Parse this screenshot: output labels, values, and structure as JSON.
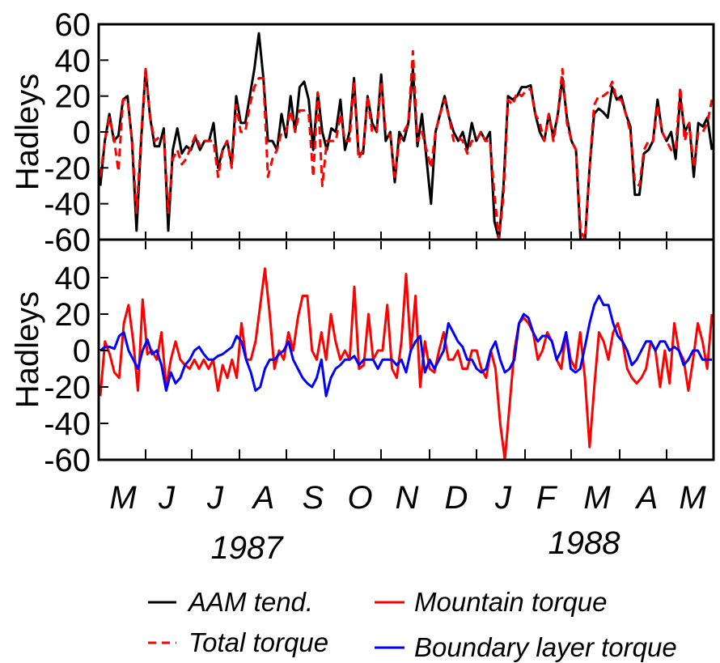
{
  "chart_data": [
    {
      "type": "line",
      "ylabel": "Hadleys",
      "ylim": [
        -60,
        60
      ],
      "yticks": [
        "60",
        "40",
        "20",
        "0",
        "-20",
        "-40",
        "-60"
      ],
      "x_step_days": 2,
      "series": [
        {
          "name": "AAM tend.",
          "color": "#000000",
          "dash": "solid",
          "values": [
            -30,
            -5,
            10,
            -5,
            -2,
            18,
            20,
            -5,
            -55,
            -5,
            35,
            8,
            -8,
            -8,
            2,
            -55,
            -10,
            2,
            -12,
            -8,
            -10,
            -3,
            -10,
            -5,
            -5,
            5,
            -20,
            -10,
            -5,
            -18,
            20,
            5,
            5,
            20,
            35,
            55,
            30,
            -5,
            -5,
            -10,
            10,
            -3,
            20,
            0,
            25,
            28,
            18,
            -10,
            22,
            0,
            -10,
            2,
            0,
            18,
            -10,
            0,
            30,
            -12,
            -12,
            20,
            5,
            0,
            32,
            -5,
            0,
            -28,
            0,
            -5,
            5,
            35,
            -8,
            10,
            -15,
            -40,
            0,
            10,
            20,
            8,
            0,
            -5,
            0,
            -10,
            5,
            -5,
            0,
            -5,
            0,
            -50,
            -70,
            -30,
            20,
            18,
            20,
            25,
            25,
            26,
            10,
            0,
            -5,
            10,
            -3,
            10,
            30,
            8,
            -5,
            -10,
            -70,
            -70,
            -20,
            10,
            13,
            11,
            8,
            25,
            18,
            20,
            10,
            3,
            -35,
            -35,
            -12,
            -10,
            -5,
            18,
            0,
            -5,
            0,
            -15,
            20,
            0,
            5,
            -25,
            5,
            3,
            8,
            -10
          ],
          "label_values": []
        },
        {
          "name": "Total torque",
          "color": "#ff0000",
          "dash": "dashed",
          "values": [
            -25,
            -5,
            8,
            -3,
            -22,
            18,
            18,
            -5,
            -45,
            -3,
            35,
            8,
            -5,
            -3,
            -2,
            -45,
            -15,
            -10,
            -18,
            -15,
            -8,
            -2,
            -8,
            -5,
            -5,
            -5,
            -25,
            -10,
            -5,
            -20,
            15,
            0,
            0,
            15,
            25,
            30,
            30,
            -25,
            -15,
            -10,
            0,
            0,
            12,
            0,
            12,
            12,
            10,
            -25,
            22,
            -30,
            -5,
            -5,
            -5,
            10,
            -5,
            -5,
            28,
            -15,
            -10,
            20,
            0,
            0,
            28,
            0,
            -2,
            -25,
            -5,
            0,
            5,
            45,
            -5,
            0,
            -10,
            -20,
            0,
            10,
            18,
            8,
            -5,
            -3,
            -5,
            -12,
            -5,
            -5,
            0,
            -5,
            -5,
            -35,
            -65,
            -35,
            18,
            15,
            22,
            20,
            23,
            24,
            10,
            5,
            -5,
            10,
            -5,
            10,
            35,
            5,
            -5,
            -10,
            -55,
            -60,
            -20,
            15,
            20,
            20,
            22,
            28,
            18,
            18,
            10,
            0,
            -28,
            -30,
            -10,
            -5,
            -5,
            15,
            0,
            -5,
            -10,
            -10,
            25,
            -5,
            5,
            -20,
            0,
            0,
            5,
            18
          ],
          "label_values": []
        }
      ]
    },
    {
      "type": "line",
      "ylabel": "Hadleys",
      "ylim": [
        -60,
        60
      ],
      "yticks": [
        "40",
        "20",
        "0",
        "-20",
        "-40",
        "-60"
      ],
      "x_step_days": 2,
      "series": [
        {
          "name": "Mountain torque",
          "color": "#ff0000",
          "dash": "solid",
          "values": [
            -25,
            5,
            -2,
            -12,
            -15,
            15,
            25,
            5,
            -22,
            28,
            -2,
            0,
            -5,
            10,
            -20,
            -5,
            5,
            -5,
            -8,
            -10,
            -5,
            -10,
            -5,
            -10,
            -5,
            -22,
            -8,
            -15,
            -5,
            -15,
            15,
            -5,
            -5,
            5,
            25,
            45,
            20,
            -10,
            0,
            -5,
            10,
            0,
            18,
            30,
            30,
            0,
            -5,
            10,
            -5,
            20,
            5,
            -5,
            0,
            -5,
            35,
            -10,
            -8,
            20,
            -5,
            0,
            0,
            25,
            -10,
            -15,
            5,
            42,
            0,
            30,
            -20,
            5,
            -10,
            -12,
            0,
            10,
            -5,
            -5,
            0,
            -10,
            -10,
            0,
            0,
            -10,
            -15,
            0,
            -10,
            -40,
            -60,
            -30,
            0,
            15,
            18,
            15,
            10,
            -5,
            0,
            10,
            5,
            -5,
            -10,
            10,
            -5,
            -10,
            10,
            -15,
            -53,
            -20,
            10,
            5,
            -5,
            10,
            15,
            5,
            -10,
            -15,
            -18,
            -15,
            -10,
            5,
            0,
            -20,
            0,
            -18,
            15,
            0,
            -5,
            -22,
            -5,
            15,
            5,
            -10,
            20
          ],
          "label_values": []
        },
        {
          "name": "Boundary layer torque",
          "color": "#0000ff",
          "dash": "solid",
          "values": [
            0,
            2,
            2,
            1,
            8,
            10,
            0,
            -5,
            -10,
            0,
            6,
            -2,
            0,
            -8,
            -22,
            -12,
            -18,
            -15,
            -8,
            -5,
            0,
            2,
            -2,
            -5,
            -5,
            -3,
            -2,
            0,
            2,
            8,
            5,
            -5,
            -12,
            -22,
            -20,
            -10,
            -5,
            -5,
            -2,
            0,
            5,
            -5,
            -10,
            -15,
            -18,
            -20,
            -15,
            -5,
            -25,
            -15,
            -10,
            -8,
            -5,
            -5,
            -3,
            -8,
            -5,
            -5,
            -5,
            -10,
            -5,
            -5,
            -5,
            -8,
            -5,
            -12,
            0,
            5,
            8,
            -12,
            -5,
            -10,
            -5,
            0,
            15,
            10,
            5,
            2,
            -5,
            -5,
            -10,
            -12,
            -10,
            0,
            5,
            -5,
            -12,
            -10,
            -5,
            15,
            20,
            18,
            10,
            5,
            8,
            8,
            5,
            -5,
            0,
            10,
            -10,
            -12,
            -10,
            2,
            15,
            25,
            30,
            25,
            25,
            15,
            8,
            5,
            0,
            -8,
            -5,
            0,
            5,
            5,
            0,
            5,
            5,
            0,
            2,
            0,
            -8,
            -5,
            0,
            0,
            -5,
            -5,
            -5
          ],
          "label_values": []
        }
      ]
    }
  ],
  "time_axis": {
    "months": [
      "M",
      "J",
      "J",
      "A",
      "S",
      "O",
      "N",
      "D",
      "J",
      "F",
      "M",
      "A",
      "M"
    ],
    "years": [
      "1987",
      "1988"
    ]
  },
  "legend": {
    "items": [
      {
        "label": "AAM tend.",
        "color": "#000000",
        "dash": "solid"
      },
      {
        "label": "Mountain torque",
        "color": "#ff0000",
        "dash": "solid"
      },
      {
        "label": "Total torque",
        "color": "#ff0000",
        "dash": "dashed"
      },
      {
        "label": "Boundary layer torque",
        "color": "#0000ff",
        "dash": "solid"
      }
    ]
  }
}
